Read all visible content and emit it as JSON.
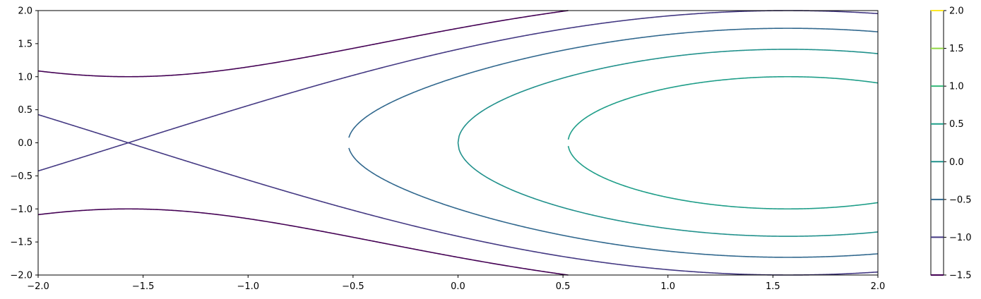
{
  "chart_data": {
    "type": "contour",
    "function": "z = sin(x) - y^2 / 2",
    "x_range": [
      -2,
      2
    ],
    "y_range": [
      -2,
      2
    ],
    "levels": [
      -1.5,
      -1.0,
      -0.5,
      0.0,
      0.5,
      1.0,
      1.5,
      2.0
    ],
    "level_colors": [
      "#440154",
      "#443983",
      "#31688e",
      "#21918c",
      "#1f9e89",
      "#35b779",
      "#90d743",
      "#fde725"
    ],
    "x_ticks": [
      "−2.0",
      "−1.5",
      "−1.0",
      "−0.5",
      "0.0",
      "0.5",
      "1.0",
      "1.5",
      "2.0"
    ],
    "x_tick_values": [
      -2.0,
      -1.5,
      -1.0,
      -0.5,
      0.0,
      0.5,
      1.0,
      1.5,
      2.0
    ],
    "y_ticks": [
      "−2.0",
      "−1.5",
      "−1.0",
      "−0.5",
      "0.0",
      "0.5",
      "1.0",
      "1.5",
      "2.0"
    ],
    "y_tick_values": [
      -2.0,
      -1.5,
      -1.0,
      -0.5,
      0.0,
      0.5,
      1.0,
      1.5,
      2.0
    ],
    "colorbar": {
      "ticks": [
        "−1.5",
        "−1.0",
        "−0.5",
        "0.0",
        "0.5",
        "1.0",
        "1.5",
        "2.0"
      ],
      "tick_values": [
        -1.5,
        -1.0,
        -0.5,
        0.0,
        0.5,
        1.0,
        1.5,
        2.0
      ]
    },
    "grid": false
  }
}
